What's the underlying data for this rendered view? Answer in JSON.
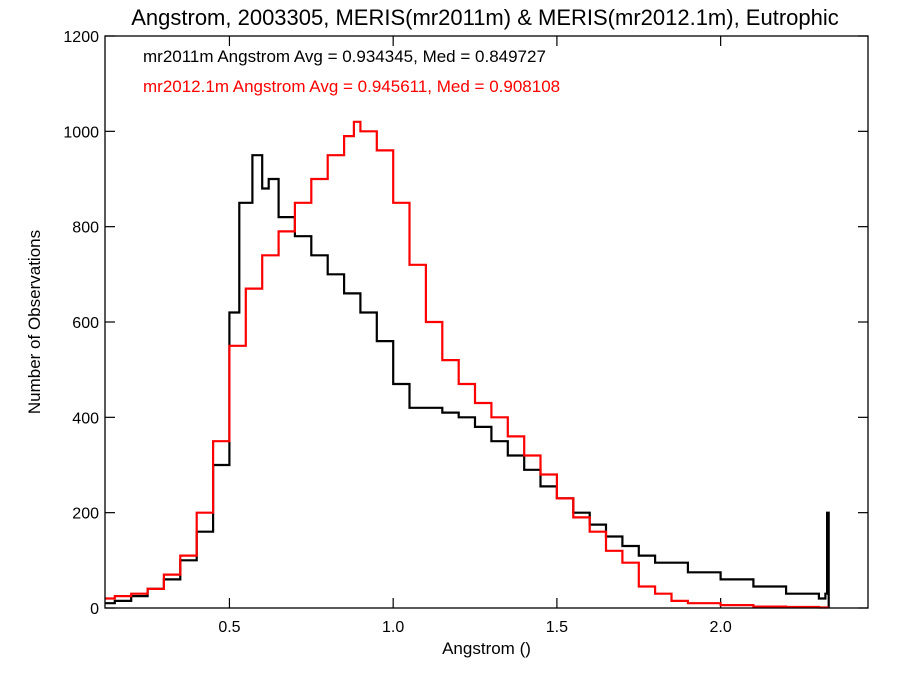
{
  "chart_data": {
    "type": "line",
    "title": "Angstrom, 2003305, MERIS(mr2011m) & MERIS(mr2012.1m), Eutrophic",
    "xlabel": "Angstrom ()",
    "ylabel": "Number of Observations",
    "xlim": [
      0.12,
      2.45
    ],
    "ylim": [
      0,
      1200
    ],
    "x_ticks": [
      0.5,
      1.0,
      1.5,
      2.0
    ],
    "x_tick_labels": [
      "0.5",
      "1.0",
      "1.5",
      "2.0"
    ],
    "y_ticks": [
      0,
      200,
      400,
      600,
      800,
      1000,
      1200
    ],
    "y_tick_labels": [
      "0",
      "200",
      "400",
      "600",
      "800",
      "1000",
      "1200"
    ],
    "grid": false,
    "annotations": [
      {
        "text": "mr2011m Angstrom Avg = 0.934345, Med = 0.849727",
        "color": "#000000"
      },
      {
        "text": "mr2012.1m Angstrom Avg = 0.945611, Med = 0.908108",
        "color": "#ff0000"
      }
    ],
    "series": [
      {
        "color": "#000000",
        "x": [
          0.12,
          0.15,
          0.2,
          0.25,
          0.3,
          0.35,
          0.4,
          0.45,
          0.5,
          0.53,
          0.57,
          0.6,
          0.62,
          0.65,
          0.7,
          0.75,
          0.8,
          0.85,
          0.9,
          0.95,
          1.0,
          1.05,
          1.1,
          1.15,
          1.2,
          1.25,
          1.3,
          1.35,
          1.4,
          1.45,
          1.5,
          1.55,
          1.6,
          1.65,
          1.7,
          1.75,
          1.8,
          1.9,
          2.0,
          2.1,
          2.2,
          2.3,
          2.32,
          2.325,
          2.33
        ],
        "y": [
          10,
          15,
          25,
          40,
          60,
          100,
          160,
          300,
          620,
          850,
          950,
          880,
          900,
          820,
          780,
          740,
          700,
          660,
          620,
          560,
          470,
          420,
          420,
          410,
          400,
          380,
          350,
          320,
          290,
          255,
          230,
          200,
          175,
          150,
          130,
          110,
          95,
          75,
          60,
          45,
          30,
          20,
          30,
          200,
          0
        ]
      },
      {
        "color": "#ff0000",
        "x": [
          0.12,
          0.15,
          0.2,
          0.25,
          0.3,
          0.35,
          0.4,
          0.45,
          0.5,
          0.55,
          0.6,
          0.65,
          0.7,
          0.75,
          0.8,
          0.85,
          0.88,
          0.9,
          0.95,
          1.0,
          1.05,
          1.1,
          1.15,
          1.2,
          1.25,
          1.3,
          1.35,
          1.4,
          1.45,
          1.5,
          1.55,
          1.6,
          1.65,
          1.7,
          1.75,
          1.8,
          1.85,
          1.9,
          2.0,
          2.1,
          2.2,
          2.3,
          2.33
        ],
        "y": [
          20,
          25,
          30,
          40,
          70,
          110,
          200,
          350,
          550,
          670,
          740,
          790,
          850,
          900,
          950,
          990,
          1020,
          1000,
          960,
          850,
          720,
          600,
          520,
          470,
          430,
          400,
          360,
          320,
          280,
          230,
          190,
          160,
          120,
          95,
          45,
          30,
          15,
          10,
          6,
          3,
          2,
          1,
          1
        ]
      }
    ]
  }
}
